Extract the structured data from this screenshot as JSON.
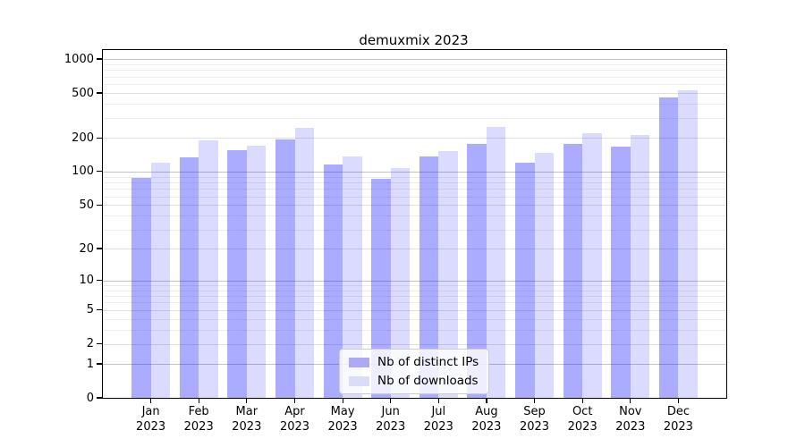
{
  "figure": {
    "title": "demuxmix 2023"
  },
  "chart_data": {
    "type": "bar",
    "title": "demuxmix 2023",
    "categories": [
      "Jan",
      "Feb",
      "Mar",
      "Apr",
      "May",
      "Jun",
      "Jul",
      "Aug",
      "Sep",
      "Oct",
      "Nov",
      "Dec"
    ],
    "year": "2023",
    "series": [
      {
        "name": "Nb of distinct IPs",
        "color": "rgba(0,0,255,0.33)",
        "solid_color": "#aaaaf5",
        "values": [
          87,
          135,
          155,
          194,
          116,
          86,
          137,
          176,
          119,
          175,
          167,
          453
        ]
      },
      {
        "name": "Nb of downloads",
        "color": "rgba(0,0,255,0.14)",
        "solid_color": "#dbdbfa",
        "values": [
          120,
          190,
          170,
          245,
          137,
          107,
          152,
          250,
          148,
          221,
          212,
          527
        ]
      }
    ],
    "xlabel": "",
    "ylabel": "",
    "yscale": "log1p",
    "yticks": [
      0,
      1,
      2,
      5,
      10,
      20,
      50,
      100,
      200,
      500,
      1000
    ],
    "ylim": [
      0,
      1200
    ],
    "grid": "both",
    "grid_colors": {
      "power10": "#c3c3c3",
      "labeled": "#e0e0e0",
      "minor": "#ededed"
    },
    "legend_position": "lower center"
  }
}
